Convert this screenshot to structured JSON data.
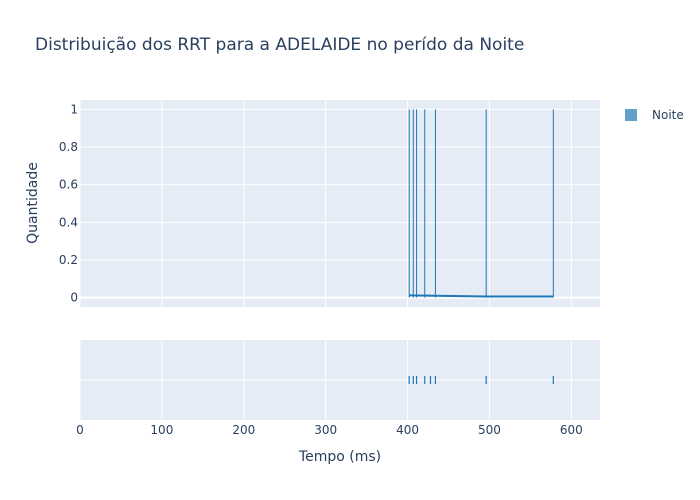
{
  "chart_data": {
    "type": "histogram",
    "title": "Distribuição dos RRT para a ADELAIDE no perído da Noite",
    "xlabel": "Tempo (ms)",
    "ylabel": "Quantidade",
    "xlim": [
      0,
      635
    ],
    "ylim": [
      -0.05,
      1.05
    ],
    "x_ticks": [
      0,
      100,
      200,
      300,
      400,
      500,
      600
    ],
    "y_ticks": [
      0,
      0.2,
      0.4,
      0.6,
      0.8,
      1
    ],
    "y_tick_labels": [
      "0",
      "0.2",
      "0.4",
      "0.6",
      "0.8",
      "1"
    ],
    "legend": {
      "entries": [
        "Noite"
      ],
      "placement": "top-right"
    },
    "grid": true,
    "series": [
      {
        "name": "Noite",
        "color": "#1f77b4",
        "rug_values": [
          402,
          407,
          411,
          421,
          428,
          434,
          496,
          578
        ],
        "spike_values": [
          402,
          407,
          411,
          421,
          434,
          496,
          578
        ],
        "density_curve": [
          [
            402,
            0.012
          ],
          [
            434,
            0.01
          ],
          [
            496,
            0.006
          ],
          [
            578,
            0.006
          ]
        ]
      }
    ]
  }
}
